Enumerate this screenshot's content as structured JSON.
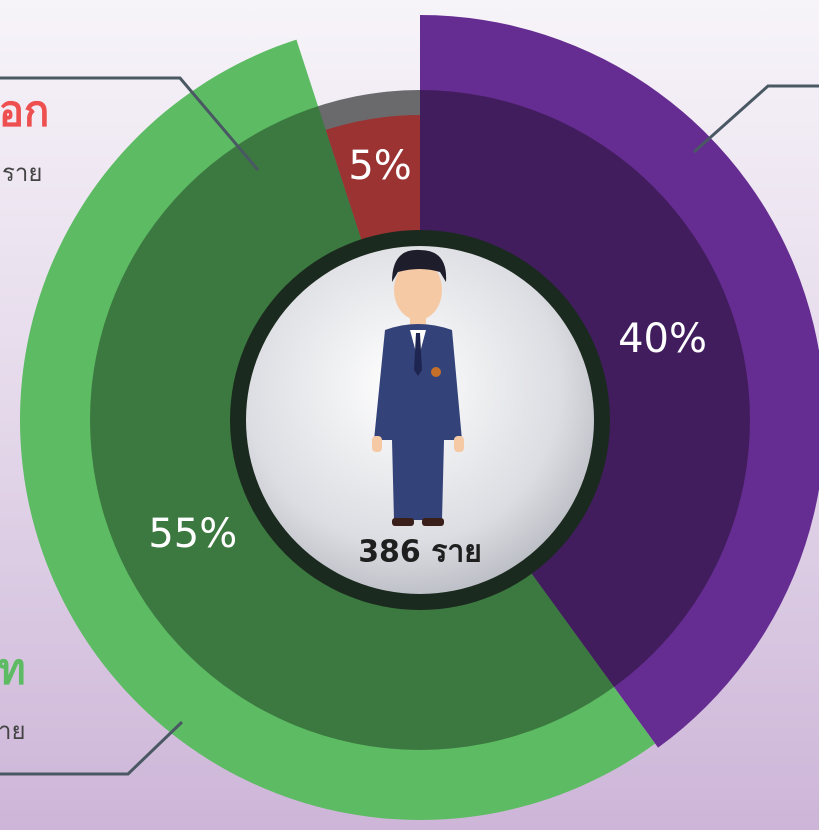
{
  "chart_data": {
    "type": "pie",
    "values": [
      40,
      55,
      5
    ],
    "value_labels": [
      "40%",
      "55%",
      "5%"
    ],
    "colors": [
      "#652d91",
      "#5dbb63",
      "#ee4f4f"
    ],
    "center_label": "386 ราย",
    "annotations": [
      "นอก",
      "ราย",
      "ท",
      "าย"
    ]
  }
}
